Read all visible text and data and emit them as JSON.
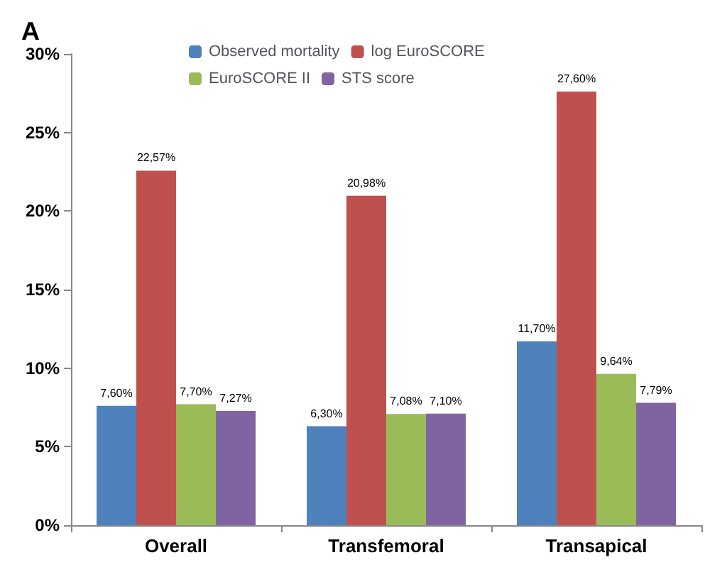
{
  "chart_data": {
    "type": "bar",
    "title": "A",
    "categories": [
      "Overall",
      "Transfemoral",
      "Transapical"
    ],
    "series": [
      {
        "name": "Observed mortality",
        "color": "#4f81bd",
        "values": [
          7.6,
          6.3,
          11.7
        ],
        "value_labels": [
          "7,60%",
          "6,30%",
          "11,70%"
        ]
      },
      {
        "name": "log EuroSCORE",
        "color": "#c0504d",
        "values": [
          22.57,
          20.98,
          27.6
        ],
        "value_labels": [
          "22,57%",
          "20,98%",
          "27,60%"
        ]
      },
      {
        "name": "EuroSCORE II",
        "color": "#9bbb59",
        "values": [
          7.7,
          7.08,
          9.64
        ],
        "value_labels": [
          "7,70%",
          "7,08%",
          "9,64%"
        ]
      },
      {
        "name": "STS score",
        "color": "#8064a2",
        "values": [
          7.27,
          7.1,
          7.79
        ],
        "value_labels": [
          "7,27%",
          "7,10%",
          "7,79%"
        ]
      }
    ],
    "ylim": [
      0,
      30
    ],
    "yticks": [
      {
        "value": 0,
        "label": "0%"
      },
      {
        "value": 5,
        "label": "5%"
      },
      {
        "value": 10,
        "label": "10%"
      },
      {
        "value": 15,
        "label": "15%"
      },
      {
        "value": 20,
        "label": "20%"
      },
      {
        "value": 25,
        "label": "25%"
      },
      {
        "value": 30,
        "label": "30%"
      }
    ],
    "grid": false,
    "legend": "top"
  }
}
